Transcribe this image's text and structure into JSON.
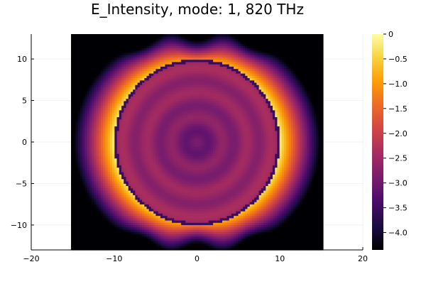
{
  "chart_data": {
    "type": "heatmap",
    "title": "E_Intensity, mode: 1, 820 THz",
    "xlabel": "",
    "ylabel": "",
    "xlim": [
      -20,
      20
    ],
    "ylim": [
      -13,
      13
    ],
    "x_ticks": [
      -20,
      -10,
      0,
      10,
      20
    ],
    "x_tick_labels": [
      "−20",
      "−10",
      "0",
      "10",
      "20"
    ],
    "y_ticks": [
      -10,
      -5,
      0,
      5,
      10
    ],
    "y_tick_labels": [
      "−10",
      "−5",
      "0",
      "5",
      "10"
    ],
    "data_extent": {
      "x": [
        -15.2,
        15.2
      ],
      "y": [
        -13,
        13
      ]
    },
    "circle": {
      "center": [
        0,
        0
      ],
      "radius": 10
    },
    "grid": true,
    "colormap": "inferno",
    "colorbar": {
      "range": [
        -4.35,
        0
      ],
      "ticks": [
        0,
        -0.5,
        -1,
        -1.5,
        -2,
        -2.5,
        -3,
        -3.5,
        -4
      ],
      "tick_labels": [
        "0",
        "−0.5",
        "−1.0",
        "−1.5",
        "−2.0",
        "−2.5",
        "−3.0",
        "−3.5",
        "−4.0"
      ]
    },
    "colormap_stops": [
      "#000004",
      "#1b0c41",
      "#4a0c6b",
      "#781c6d",
      "#a52c60",
      "#cf4446",
      "#ed6925",
      "#fb9b06",
      "#f7d13d",
      "#fcffa4"
    ]
  }
}
